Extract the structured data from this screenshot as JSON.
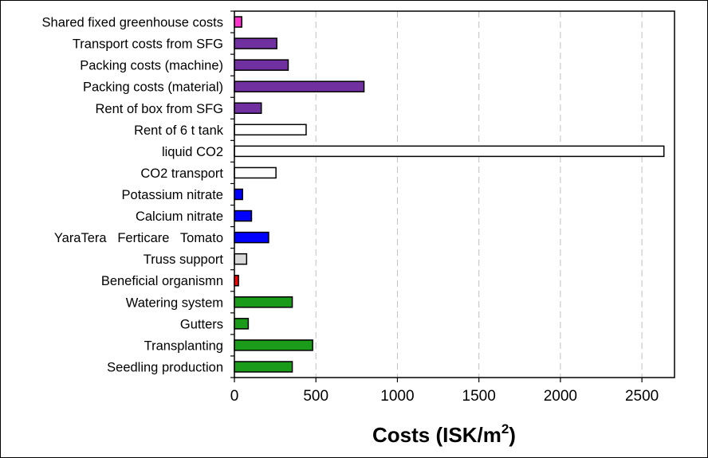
{
  "chart_data": {
    "type": "bar",
    "orientation": "horizontal",
    "title": "",
    "xlabel": "Costs (ISK/m",
    "xlabel_superscript": "2",
    "xlabel_suffix": ")",
    "ylabel": "",
    "xlim": [
      0,
      2700
    ],
    "xticks": [
      0,
      500,
      1000,
      1500,
      2000,
      2500
    ],
    "grid": "vertical-dashed",
    "categories": [
      "Shared fixed greenhouse costs",
      "Transport costs from SFG",
      "Packing costs (machine)",
      "Packing costs (material)",
      "Rent of box from SFG",
      "Rent of 6 t tank",
      "liquid CO2",
      "CO2 transport",
      "Potassium nitrate",
      "Calcium nitrate",
      "YaraTera   Ferticare   Tomato",
      "Truss support",
      "Beneficial organismn",
      "Watering system",
      "Gutters",
      "Transplanting",
      "Seedling production"
    ],
    "values": [
      45,
      260,
      330,
      795,
      165,
      440,
      2635,
      255,
      50,
      105,
      210,
      75,
      25,
      355,
      85,
      480,
      355
    ],
    "colors": [
      "#ff33cc",
      "#7030a0",
      "#7030a0",
      "#7030a0",
      "#7030a0",
      "#ffffff",
      "#ffffff",
      "#ffffff",
      "#0000ff",
      "#0000ff",
      "#0000ff",
      "#d9d9d9",
      "#ff0000",
      "#1a9b1a",
      "#1a9b1a",
      "#1a9b1a",
      "#1a9b1a"
    ]
  }
}
